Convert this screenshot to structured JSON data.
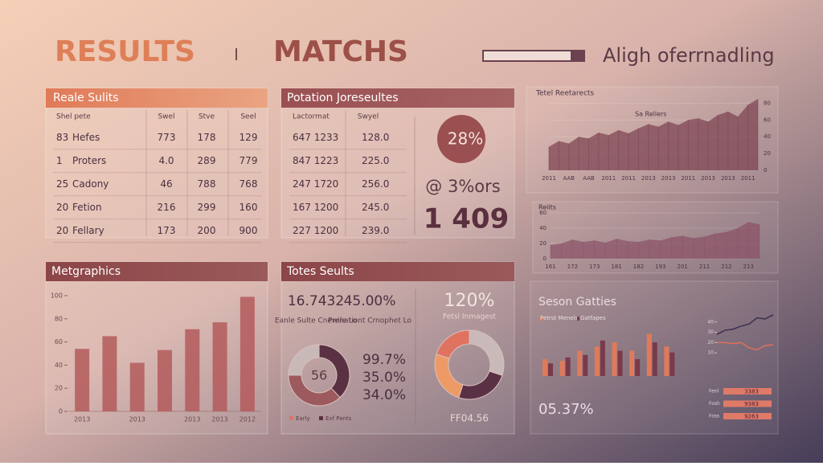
{
  "header": {
    "title_left": "RESULTS",
    "title_right": "MATCHS",
    "search_label": "Aligh oferrnadling"
  },
  "panels": {
    "results": {
      "title": "Reale Sulits",
      "columns": [
        "Shel pete",
        "Swel",
        "Stve",
        "Seel"
      ],
      "rows": [
        [
          "83",
          "Hefes",
          "773",
          "178",
          "129"
        ],
        [
          "1",
          "Proters",
          "4.0",
          "289",
          "779"
        ],
        [
          "25",
          "Cadony",
          "46",
          "788",
          "768"
        ],
        [
          "20",
          "Fetion",
          "216",
          "299",
          "160"
        ],
        [
          "20",
          "Fellary",
          "173",
          "200",
          "900"
        ]
      ]
    },
    "potation": {
      "title": "Potation Joreseultes",
      "columns": [
        "Lactormat",
        "Swyel"
      ],
      "rows": [
        [
          "647 1233",
          "128.0"
        ],
        [
          "847 1223",
          "225.0"
        ],
        [
          "247 1720",
          "256.0"
        ],
        [
          "167 1200",
          "245.0"
        ],
        [
          "227 1200",
          "239.0"
        ]
      ],
      "badge": "28%",
      "stat_small": "@ 3%ors",
      "stat_big": "1 409"
    },
    "metgraphics": {
      "title": "Metgraphics",
      "chart": {
        "type": "bar",
        "categories": [
          "2013",
          null,
          "2013",
          null,
          "2013",
          "2013",
          "2012"
        ],
        "values": [
          54,
          65,
          42,
          53,
          71,
          77,
          99
        ],
        "color": "#b45a5c",
        "ylim": [
          0,
          100
        ],
        "yticks": [
          0,
          20,
          40,
          60,
          80,
          100
        ]
      }
    },
    "totes": {
      "title": "Totes Seults",
      "stats": [
        {
          "value": "16.7432",
          "label": "Eanle Sulte Cnewile Lo"
        },
        {
          "value": "45.00%",
          "label": "Prenationt Crnophet Lo"
        }
      ],
      "donut": {
        "type": "pie",
        "center": "56",
        "values": [
          38,
          37,
          25
        ],
        "colors": [
          "#5a3142",
          "#9c5a5e",
          "#c9b8b8"
        ]
      },
      "percentages": [
        "99.7%",
        "35.0%",
        "34.0%"
      ],
      "legend": [
        {
          "name": "Early",
          "color": "#d7766a"
        },
        {
          "name": "Exf Pants",
          "color": "#5a3142"
        }
      ],
      "side_value": "120%",
      "side_label": "Fetsl Inmagest",
      "donut2": {
        "type": "pie",
        "values": [
          30,
          25,
          25,
          20
        ],
        "colors": [
          "#c9b9b9",
          "#5a3045",
          "#ee9a66",
          "#e07260"
        ]
      },
      "side_footer": "FF04.56"
    }
  },
  "right": {
    "area1": {
      "title": "Tetel Reetarects",
      "legend": "Sa Rellers",
      "chart": {
        "type": "area",
        "values": [
          28,
          35,
          32,
          40,
          38,
          45,
          42,
          48,
          44,
          50,
          55,
          52,
          58,
          54,
          60,
          62,
          58,
          66,
          70,
          64,
          78,
          85
        ],
        "categories": [
          "2011",
          null,
          "AAB",
          null,
          "AAB",
          null,
          "2011",
          null,
          "2011",
          null,
          "2013",
          null,
          "2013",
          null,
          "2011",
          null,
          "2013",
          null,
          "2013",
          null,
          "2011",
          null
        ],
        "color": "#7a4050",
        "ylim": [
          0,
          90
        ],
        "yticks": [
          0,
          20,
          40,
          60,
          80
        ]
      }
    },
    "area2": {
      "title": "Relits",
      "chart": {
        "type": "area",
        "values": [
          18,
          20,
          25,
          22,
          24,
          21,
          26,
          23,
          22,
          25,
          24,
          28,
          30,
          27,
          29,
          33,
          35,
          40,
          48,
          45
        ],
        "categories": [
          "161",
          null,
          "172",
          null,
          "173",
          null,
          "181",
          null,
          "182",
          null,
          "193",
          null,
          "201",
          null,
          "211",
          null,
          "212",
          null,
          "213",
          null
        ],
        "color": "#8a5065",
        "ylim": [
          0,
          60
        ],
        "yticks": [
          0,
          20,
          40,
          60
        ]
      }
    },
    "season": {
      "title": "Seson Gatties",
      "legend": [
        {
          "name": "Petrst Menels",
          "color": "#e07a5a"
        },
        {
          "name": "Gatfapes",
          "color": "#7a3a4a"
        }
      ],
      "bars": {
        "type": "bar",
        "ylim": [
          0,
          60
        ],
        "series": [
          {
            "name": "Petrst Menels",
            "color": "#e07a5a",
            "values": [
              20,
              18,
              30,
              35,
              40,
              30,
              50,
              35
            ]
          },
          {
            "name": "Gatfapes",
            "color": "#7a3a4a",
            "values": [
              15,
              22,
              25,
              42,
              30,
              20,
              40,
              28
            ]
          }
        ]
      },
      "lines": {
        "type": "line",
        "ylim": [
          0,
          50
        ],
        "yticks": [
          10,
          20,
          30,
          40
        ],
        "series": [
          {
            "color": "#3a3050",
            "values": [
              28,
              32,
              33,
              36,
              38,
              44,
              43,
              47
            ]
          },
          {
            "color": "#e0705a",
            "values": [
              20,
              20,
              19,
              20,
              15,
              13,
              17,
              18
            ]
          }
        ]
      },
      "stat": "05.37%",
      "hbars": [
        {
          "label": "Fenl",
          "value_label": "3383"
        },
        {
          "label": "Fosh",
          "value_label": "9383"
        },
        {
          "label": "Foss",
          "value_label": "9263"
        }
      ]
    }
  }
}
